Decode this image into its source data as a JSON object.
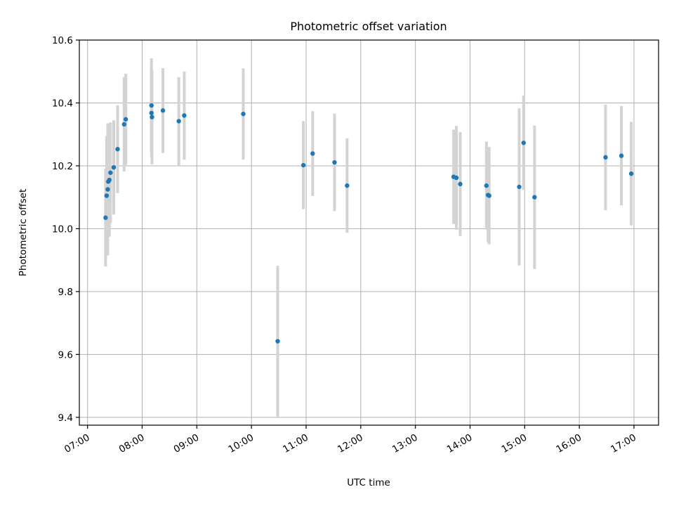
{
  "chart_data": {
    "type": "scatter",
    "title": "Photometric offset variation",
    "xlabel": "UTC time",
    "ylabel": "Photometric offset",
    "x_unit": "hours",
    "xlim": [
      6.85,
      17.45
    ],
    "ylim": [
      9.375,
      10.6
    ],
    "x_ticks": [
      7,
      8,
      9,
      10,
      11,
      12,
      13,
      14,
      15,
      16,
      17
    ],
    "x_tick_labels": [
      "07:00",
      "08:00",
      "09:00",
      "10:00",
      "11:00",
      "12:00",
      "13:00",
      "14:00",
      "15:00",
      "16:00",
      "17:00"
    ],
    "y_ticks": [
      9.4,
      9.6,
      9.8,
      10.0,
      10.2,
      10.4,
      10.6
    ],
    "y_tick_labels": [
      "9.4",
      "9.6",
      "9.8",
      "10.0",
      "10.2",
      "10.4",
      "10.6"
    ],
    "grid": true,
    "colors": {
      "point": "#1f77b4",
      "errorbar": "#d3d3d3"
    },
    "points": [
      {
        "x": 7.33,
        "y": 10.035,
        "err": 0.155
      },
      {
        "x": 7.35,
        "y": 10.105,
        "err": 0.19
      },
      {
        "x": 7.37,
        "y": 10.125,
        "err": 0.21
      },
      {
        "x": 7.38,
        "y": 10.15,
        "err": 0.17
      },
      {
        "x": 7.4,
        "y": 10.155,
        "err": 0.18
      },
      {
        "x": 7.42,
        "y": 10.178,
        "err": 0.16
      },
      {
        "x": 7.48,
        "y": 10.195,
        "err": 0.15
      },
      {
        "x": 7.55,
        "y": 10.253,
        "err": 0.14
      },
      {
        "x": 7.67,
        "y": 10.332,
        "err": 0.15
      },
      {
        "x": 7.7,
        "y": 10.348,
        "err": 0.145
      },
      {
        "x": 8.17,
        "y": 10.392,
        "err": 0.15
      },
      {
        "x": 8.17,
        "y": 10.368,
        "err": 0.14
      },
      {
        "x": 8.18,
        "y": 10.355,
        "err": 0.15
      },
      {
        "x": 8.38,
        "y": 10.376,
        "err": 0.135
      },
      {
        "x": 8.67,
        "y": 10.342,
        "err": 0.14
      },
      {
        "x": 8.77,
        "y": 10.36,
        "err": 0.14
      },
      {
        "x": 9.85,
        "y": 10.365,
        "err": 0.145
      },
      {
        "x": 10.48,
        "y": 9.642,
        "err": 0.24
      },
      {
        "x": 10.95,
        "y": 10.202,
        "err": 0.14
      },
      {
        "x": 11.12,
        "y": 10.239,
        "err": 0.135
      },
      {
        "x": 11.52,
        "y": 10.211,
        "err": 0.155
      },
      {
        "x": 11.75,
        "y": 10.137,
        "err": 0.15
      },
      {
        "x": 13.7,
        "y": 10.165,
        "err": 0.15
      },
      {
        "x": 13.75,
        "y": 10.162,
        "err": 0.165
      },
      {
        "x": 13.82,
        "y": 10.142,
        "err": 0.165
      },
      {
        "x": 14.3,
        "y": 10.137,
        "err": 0.14
      },
      {
        "x": 14.33,
        "y": 10.107,
        "err": 0.15
      },
      {
        "x": 14.35,
        "y": 10.105,
        "err": 0.155
      },
      {
        "x": 14.9,
        "y": 10.133,
        "err": 0.25
      },
      {
        "x": 14.98,
        "y": 10.273,
        "err": 0.15
      },
      {
        "x": 15.18,
        "y": 10.1,
        "err": 0.228
      },
      {
        "x": 16.48,
        "y": 10.227,
        "err": 0.168
      },
      {
        "x": 16.77,
        "y": 10.232,
        "err": 0.158
      },
      {
        "x": 16.95,
        "y": 10.175,
        "err": 0.165
      }
    ]
  }
}
